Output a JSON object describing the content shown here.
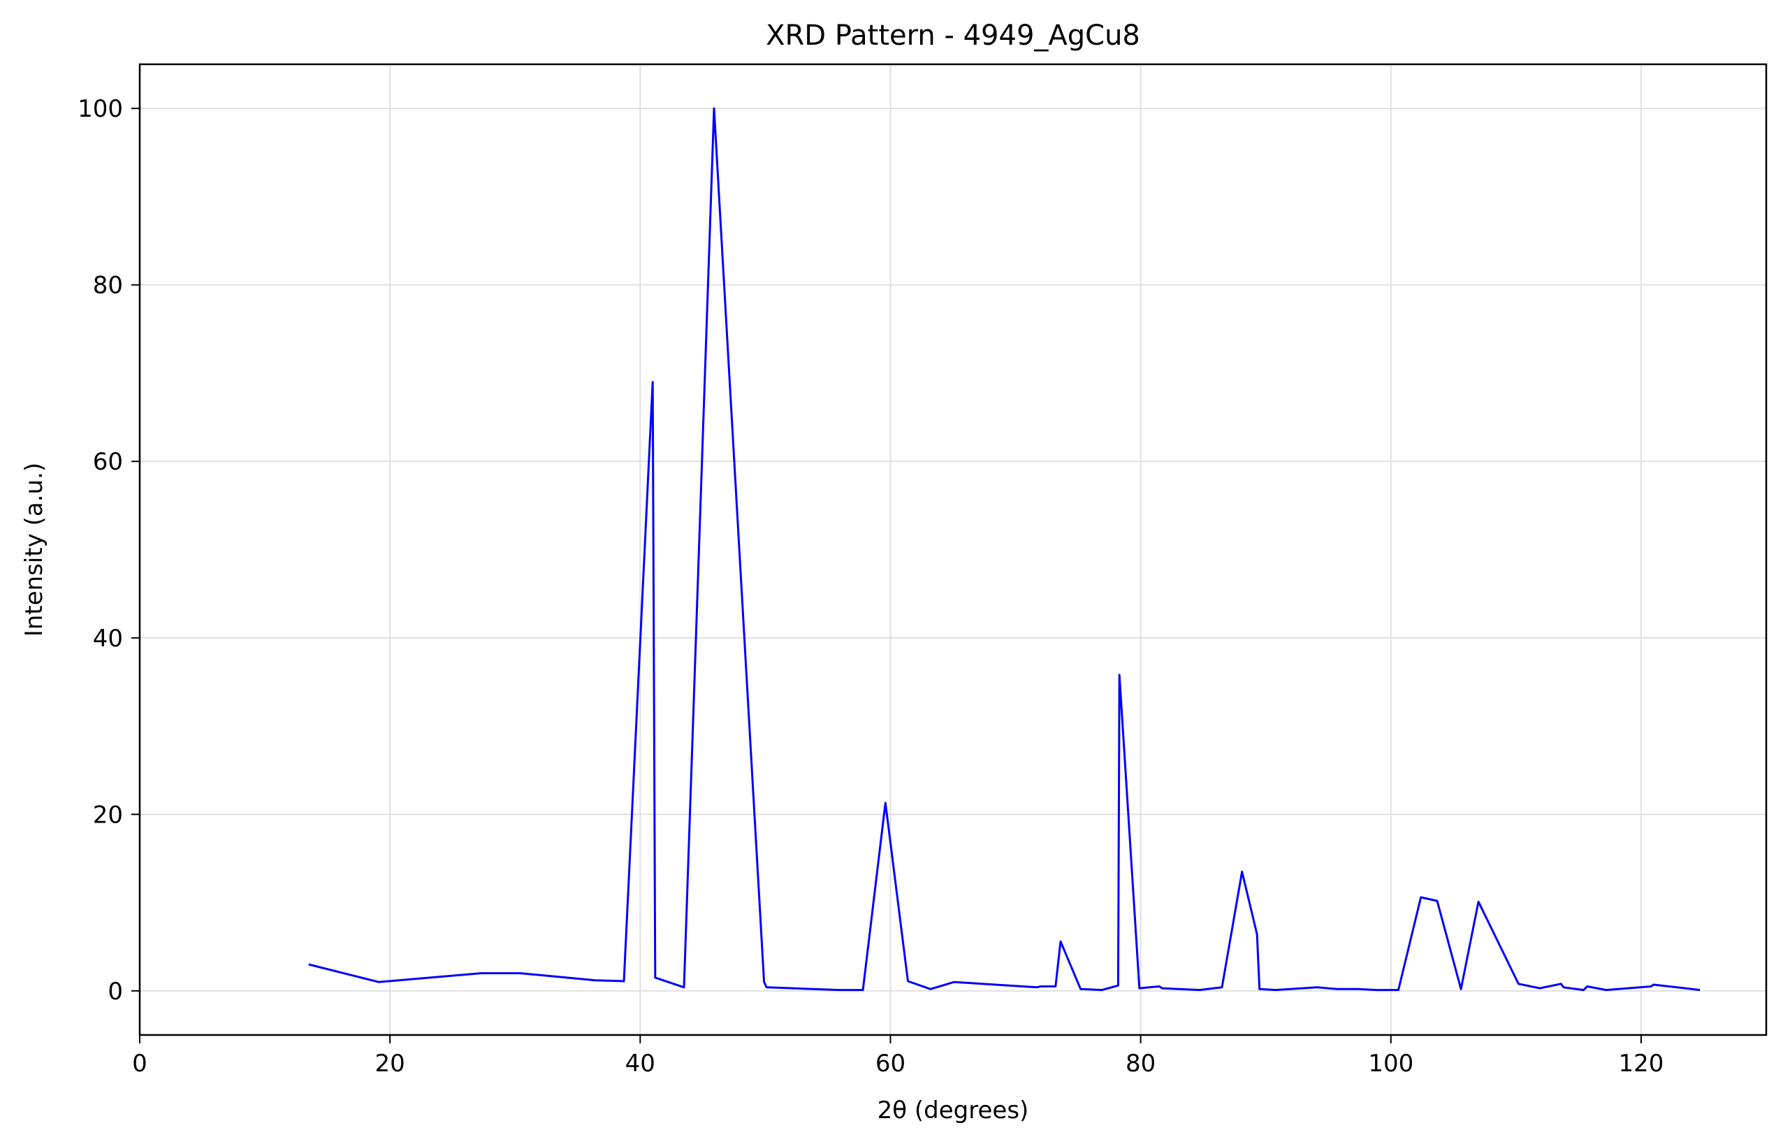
{
  "chart_data": {
    "type": "line",
    "title": "XRD Pattern - 4949_AgCu8",
    "xlabel": "2θ (degrees)",
    "ylabel": "Intensity (a.u.)",
    "xlim": [
      0,
      130
    ],
    "ylim": [
      -5,
      105
    ],
    "xticks": [
      0,
      20,
      40,
      60,
      80,
      100,
      120
    ],
    "yticks": [
      0,
      20,
      40,
      60,
      80,
      100
    ],
    "grid": true,
    "colors": {
      "line": "#0000ff",
      "grid": "#e0e0e0",
      "axes": "#000000"
    },
    "series": [
      {
        "x": [
          13.5,
          19.1,
          27.3,
          30.4,
          36.4,
          38.7,
          41.0,
          41.2,
          43.5,
          45.9,
          49.9,
          50.1,
          55.9,
          57.8,
          59.6,
          61.4,
          63.2,
          65.1,
          71.7,
          72.0,
          73.2,
          73.6,
          75.2,
          76.9,
          78.2,
          78.3,
          79.9,
          81.5,
          81.7,
          84.7,
          86.5,
          88.1,
          89.3,
          89.5,
          90.8,
          94.1,
          95.7,
          97.4,
          98.8,
          100.6,
          102.4,
          103.7,
          105.6,
          107.0,
          110.2,
          111.9,
          113.6,
          113.8,
          115.4,
          115.7,
          117.2,
          120.8,
          121.0,
          124.7
        ],
        "y": [
          3.0,
          1.0,
          2.0,
          2.0,
          1.2,
          1.1,
          69.0,
          1.5,
          0.4,
          100.0,
          1.0,
          0.4,
          0.1,
          0.1,
          21.3,
          1.1,
          0.2,
          1.0,
          0.4,
          0.5,
          0.5,
          5.6,
          0.2,
          0.1,
          0.6,
          35.8,
          0.3,
          0.5,
          0.3,
          0.1,
          0.4,
          13.5,
          6.4,
          0.2,
          0.1,
          0.4,
          0.2,
          0.2,
          0.1,
          0.1,
          10.6,
          10.2,
          0.2,
          10.1,
          0.8,
          0.3,
          0.8,
          0.4,
          0.1,
          0.5,
          0.1,
          0.5,
          0.7,
          0.1
        ]
      }
    ]
  }
}
